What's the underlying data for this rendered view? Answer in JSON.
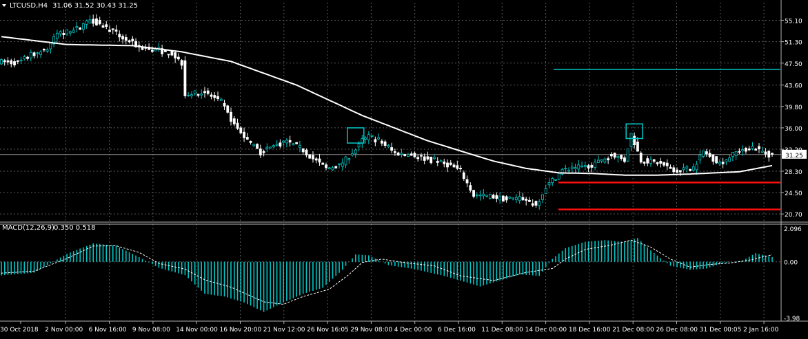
{
  "chart_data": [
    {
      "type": "candlestick",
      "title": "LTCUSD,H4",
      "ohlc_text": "31.06 31.52 30.43 31.25",
      "last_price": 31.25,
      "last_price_label": "31.25",
      "ylim": [
        19.5,
        57
      ],
      "y_ticks": [
        "55.10",
        "51.30",
        "47.50",
        "43.60",
        "39.80",
        "36.00",
        "32.20",
        "28.30",
        "24.50",
        "20.70"
      ],
      "x_tick_labels": [
        "30 Oct 2018",
        "2 Nov 00:00",
        "6 Nov 16:00",
        "9 Nov 08:00",
        "14 Nov 00:00",
        "16 Nov 20:00",
        "21 Nov 12:00",
        "26 Nov 16:05",
        "29 Nov 08:00",
        "4 Dec 00:00",
        "6 Dec 16:00",
        "11 Dec 08:00",
        "14 Dec 00:00",
        "18 Dec 16:00",
        "21 Dec 08:00",
        "26 Dec 08:00",
        "31 Dec 00:05",
        "2 Jan 16:00"
      ],
      "price_keypoints": [
        [
          0,
          47.8
        ],
        [
          6,
          47.5
        ],
        [
          10,
          49
        ],
        [
          15,
          50
        ],
        [
          18,
          52.8
        ],
        [
          24,
          53.5
        ],
        [
          28,
          55.3
        ],
        [
          33,
          53.8
        ],
        [
          38,
          52
        ],
        [
          43,
          50.3
        ],
        [
          48,
          49.8
        ],
        [
          53,
          49.2
        ],
        [
          56,
          47.5
        ],
        [
          57,
          42
        ],
        [
          63,
          42.3
        ],
        [
          68,
          40.5
        ],
        [
          72,
          36.5
        ],
        [
          76,
          33.8
        ],
        [
          80,
          31.6
        ],
        [
          84,
          32.8
        ],
        [
          88,
          33.5
        ],
        [
          92,
          32.5
        ],
        [
          96,
          30.5
        ],
        [
          100,
          28.8
        ],
        [
          104,
          29.3
        ],
        [
          108,
          31.5
        ],
        [
          111,
          33.8
        ],
        [
          113,
          34.5
        ],
        [
          117,
          33.3
        ],
        [
          121,
          31.5
        ],
        [
          126,
          31.2
        ],
        [
          132,
          30.2
        ],
        [
          138,
          29.3
        ],
        [
          141,
          28.3
        ],
        [
          145,
          24
        ],
        [
          150,
          23.9
        ],
        [
          155,
          23.2
        ],
        [
          160,
          23.5
        ],
        [
          164,
          22.2
        ],
        [
          167,
          25.5
        ],
        [
          172,
          28.5
        ],
        [
          177,
          29
        ],
        [
          182,
          29.5
        ],
        [
          187,
          31.4
        ],
        [
          191,
          30.2
        ],
        [
          193,
          34.9
        ],
        [
          196,
          30.2
        ],
        [
          201,
          29.8
        ],
        [
          207,
          28.4
        ],
        [
          212,
          29
        ],
        [
          215,
          31.8
        ],
        [
          220,
          29.6
        ],
        [
          225,
          31.7
        ],
        [
          230,
          32.6
        ],
        [
          235,
          31.2
        ]
      ],
      "ma_keypoints": [
        [
          0,
          52.2
        ],
        [
          20,
          50.8
        ],
        [
          40,
          50.6
        ],
        [
          55,
          49.5
        ],
        [
          70,
          47.8
        ],
        [
          90,
          43.6
        ],
        [
          110,
          38.2
        ],
        [
          130,
          33.7
        ],
        [
          150,
          30.1
        ],
        [
          160,
          28.8
        ],
        [
          170,
          28
        ],
        [
          180,
          27.9
        ],
        [
          190,
          27.6
        ],
        [
          200,
          27.6
        ],
        [
          210,
          27.8
        ],
        [
          225,
          28.2
        ],
        [
          235,
          29.3
        ]
      ],
      "ma_color": "#ffffff",
      "horizontal_levels": [
        {
          "value": 46.4,
          "color": "#00c8c8"
        },
        {
          "value": 26.3,
          "color": "#ff1010"
        },
        {
          "value": 21.5,
          "color": "#ff1010"
        }
      ],
      "highlight_boxes": [
        {
          "center_bar": 108,
          "low": 33.3,
          "high": 36.0,
          "color": "#00c8c8"
        },
        {
          "center_bar": 193,
          "low": 34.1,
          "high": 36.7,
          "color": "#00c8c8"
        }
      ],
      "bull_color": "#00c8c8",
      "bear_color": "#ffffff",
      "grid": true
    },
    {
      "type": "bar",
      "title": "MACD(12,26,9)",
      "values_text": "0.350 0.518",
      "ylim": [
        -3.98,
        2.096
      ],
      "y_ticks": [
        "2.096",
        "0.00",
        "-3.98"
      ],
      "hist_keypoints": [
        [
          0,
          -1.02
        ],
        [
          10,
          -0.82
        ],
        [
          20,
          0.6
        ],
        [
          28,
          1.38
        ],
        [
          35,
          1.2
        ],
        [
          42,
          0.35
        ],
        [
          48,
          -0.45
        ],
        [
          56,
          -1.0
        ],
        [
          62,
          -2.4
        ],
        [
          68,
          -2.6
        ],
        [
          74,
          -3.05
        ],
        [
          80,
          -3.75
        ],
        [
          86,
          -3.05
        ],
        [
          92,
          -2.4
        ],
        [
          98,
          -1.95
        ],
        [
          104,
          -0.6
        ],
        [
          108,
          0.55
        ],
        [
          112,
          0.48
        ],
        [
          118,
          -0.25
        ],
        [
          126,
          -0.55
        ],
        [
          136,
          -1.12
        ],
        [
          146,
          -1.85
        ],
        [
          158,
          -0.95
        ],
        [
          164,
          -1.05
        ],
        [
          168,
          0.22
        ],
        [
          172,
          1.02
        ],
        [
          178,
          1.5
        ],
        [
          184,
          1.62
        ],
        [
          190,
          1.48
        ],
        [
          194,
          1.78
        ],
        [
          198,
          0.85
        ],
        [
          204,
          -0.3
        ],
        [
          210,
          -0.6
        ],
        [
          215,
          -0.5
        ],
        [
          220,
          -0.1
        ],
        [
          226,
          0.1
        ],
        [
          230,
          0.65
        ],
        [
          235,
          0.35
        ]
      ],
      "signal_keypoints": [
        [
          0,
          -0.85
        ],
        [
          10,
          -0.7
        ],
        [
          20,
          0.25
        ],
        [
          28,
          1.18
        ],
        [
          35,
          1.2
        ],
        [
          42,
          0.7
        ],
        [
          48,
          -0.12
        ],
        [
          56,
          -0.55
        ],
        [
          62,
          -1.35
        ],
        [
          70,
          -1.9
        ],
        [
          80,
          -3.0
        ],
        [
          86,
          -3.18
        ],
        [
          92,
          -2.6
        ],
        [
          100,
          -2.05
        ],
        [
          106,
          -0.95
        ],
        [
          110,
          -0.05
        ],
        [
          116,
          0.2
        ],
        [
          124,
          -0.1
        ],
        [
          132,
          -0.3
        ],
        [
          140,
          -1.05
        ],
        [
          150,
          -1.4
        ],
        [
          160,
          -0.8
        ],
        [
          168,
          -0.5
        ],
        [
          172,
          0.2
        ],
        [
          178,
          0.92
        ],
        [
          186,
          1.25
        ],
        [
          192,
          1.62
        ],
        [
          198,
          1.1
        ],
        [
          204,
          0.2
        ],
        [
          210,
          -0.4
        ],
        [
          216,
          -0.2
        ],
        [
          222,
          -0.1
        ],
        [
          228,
          0.12
        ],
        [
          235,
          0.52
        ]
      ],
      "hist_color": "#00c8c8",
      "signal_color": "#ffffff"
    }
  ]
}
